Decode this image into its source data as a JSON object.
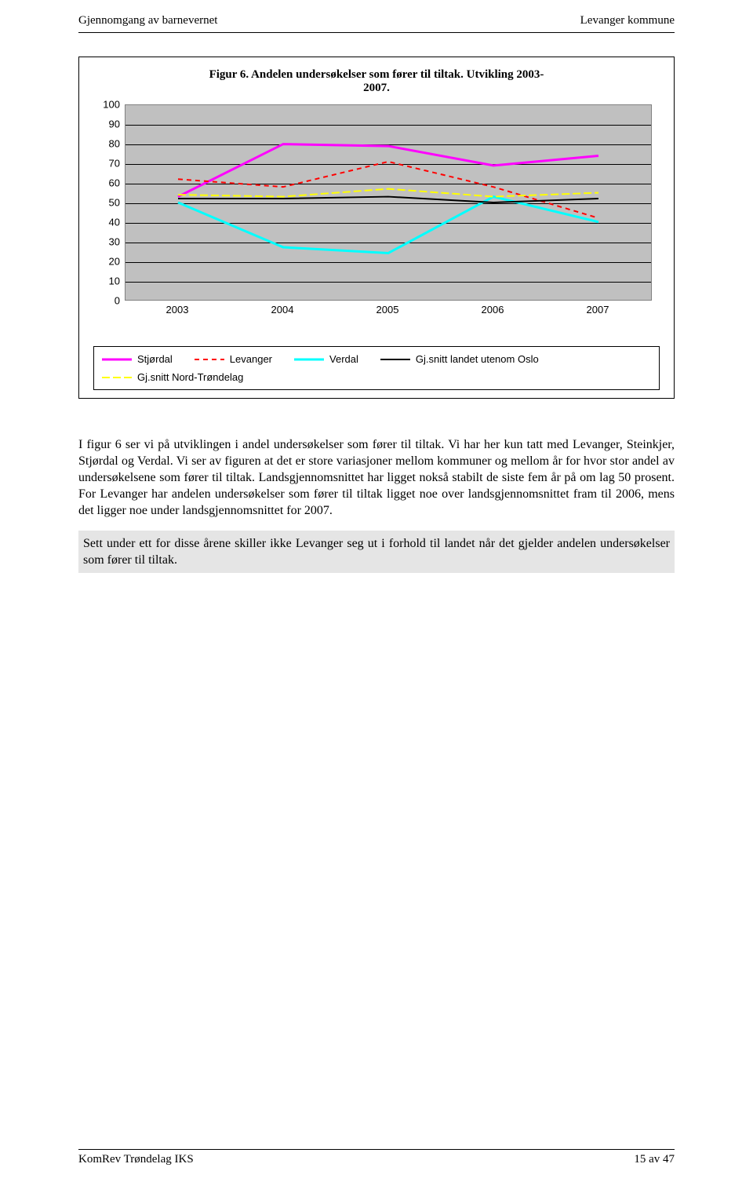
{
  "header": {
    "left": "Gjennomgang av barnevernet",
    "right": "Levanger kommune"
  },
  "chart": {
    "type": "line",
    "title_line1": "Figur 6. Andelen undersøkelser som fører til tiltak. Utvikling 2003-",
    "title_line2": "2007.",
    "background_color": "#c0c0c0",
    "grid_color": "#000000",
    "ylim": [
      0,
      100
    ],
    "ytick_step": 10,
    "x_categories": [
      "2003",
      "2004",
      "2005",
      "2006",
      "2007"
    ],
    "series": [
      {
        "name": "Stjørdal",
        "label": "Stjørdal",
        "color": "#ff00ff",
        "width": 3,
        "dash": "none",
        "data": [
          53,
          80,
          79,
          69,
          74
        ]
      },
      {
        "name": "Levanger",
        "label": "Levanger",
        "color": "#ff0000",
        "width": 2,
        "dash": "6,5",
        "data": [
          62,
          58,
          71,
          58,
          42
        ]
      },
      {
        "name": "Verdal",
        "label": "Verdal",
        "color": "#00ffff",
        "width": 3,
        "dash": "none",
        "data": [
          50,
          27,
          24,
          53,
          40
        ]
      },
      {
        "name": "Gj.snitt landet utenom Oslo",
        "label": "Gj.snitt landet utenom Oslo",
        "color": "#000000",
        "width": 2,
        "dash": "none",
        "data": [
          52,
          52,
          53,
          50,
          52
        ]
      },
      {
        "name": "Gj.snitt Nord-Trøndelag",
        "label": "Gj.snitt Nord-Trøndelag",
        "color": "#ffff00",
        "width": 2,
        "dash": "10,4",
        "data": [
          54,
          53,
          57,
          53,
          55
        ]
      }
    ],
    "label_fontsize": 13
  },
  "paragraph1": "I figur 6 ser vi på utviklingen i andel undersøkelser som fører til tiltak. Vi har her kun tatt med Levanger, Steinkjer, Stjørdal og Verdal. Vi ser av figuren at det er store variasjoner mellom kommuner og mellom år for hvor stor andel av undersøkelsene som fører til tiltak. Landsgjennomsnittet har ligget nokså stabilt de siste fem år på om lag 50 prosent. For Levanger har andelen undersøkelser som fører til tiltak ligget noe over landsgjennomsnittet fram til 2006, mens det ligger noe under landsgjennomsnittet for 2007.",
  "paragraph2": "Sett under ett for disse årene skiller ikke Levanger seg ut i forhold til landet når det gjelder andelen undersøkelser som fører til tiltak.",
  "footer": {
    "left": "KomRev Trøndelag IKS",
    "right": "15 av 47"
  }
}
